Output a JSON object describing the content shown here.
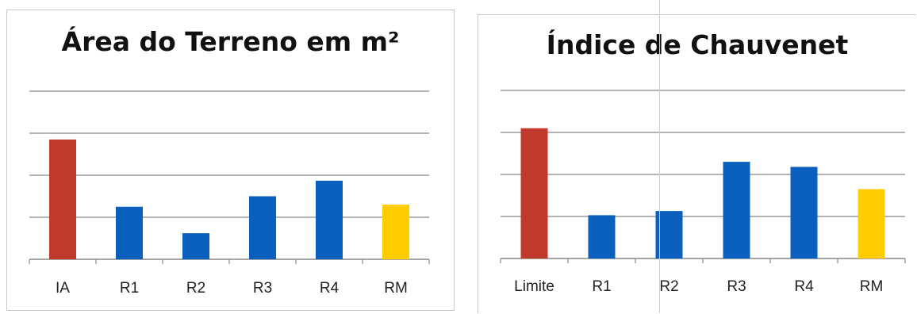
{
  "colors": {
    "reference": "#c0392b",
    "result": "#0b5fbd",
    "mean": "#ffcc00",
    "grid": "#888888"
  },
  "chart_data": [
    {
      "type": "bar",
      "title": "Área do Terreno em m²",
      "categories": [
        "IA",
        "R1",
        "R2",
        "R3",
        "R4",
        "RM"
      ],
      "values": [
        2.85,
        1.25,
        0.62,
        1.5,
        1.87,
        1.3
      ],
      "ylim": [
        0,
        4
      ],
      "grid": true,
      "bar_colors": [
        "reference",
        "result",
        "result",
        "result",
        "result",
        "mean"
      ]
    },
    {
      "type": "bar",
      "title": "Índice de Chauvenet",
      "categories": [
        "Limite",
        "R1",
        "R2",
        "R3",
        "R4",
        "RM"
      ],
      "values": [
        3.1,
        1.03,
        1.13,
        2.3,
        2.18,
        1.65
      ],
      "ylim": [
        0,
        4
      ],
      "grid": true,
      "bar_colors": [
        "reference",
        "result",
        "result",
        "result",
        "result",
        "mean"
      ]
    }
  ]
}
